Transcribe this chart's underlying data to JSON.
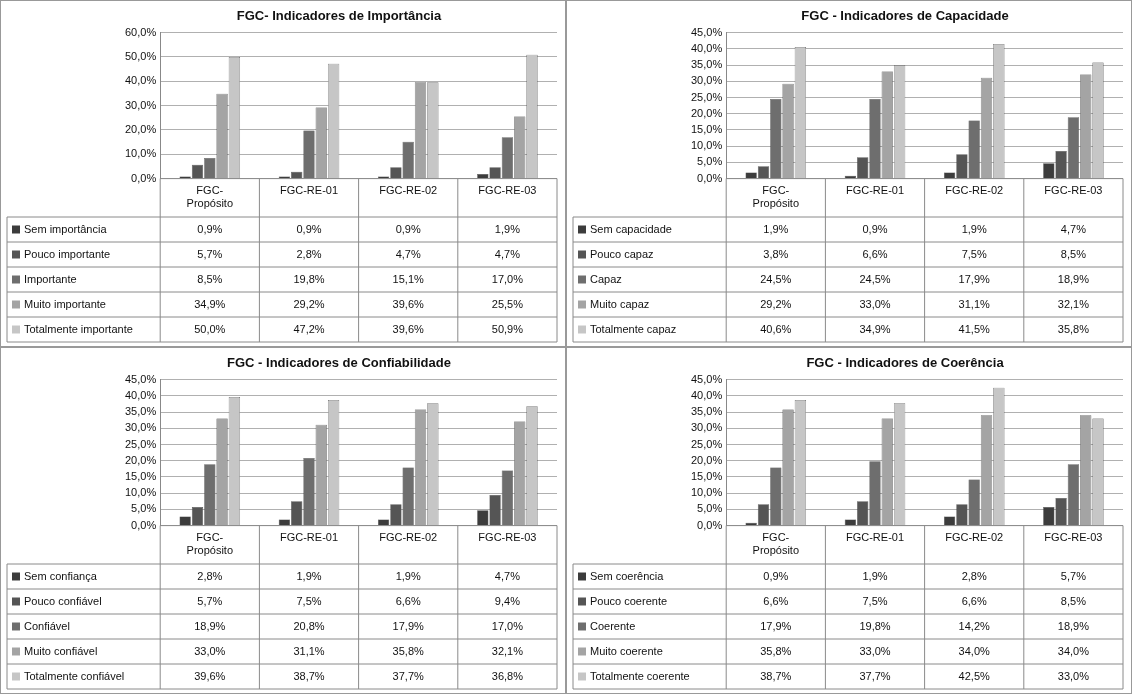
{
  "chart_data": [
    {
      "type": "bar",
      "title": "FGC- Indicadores de Importância",
      "legend": "bottom left",
      "categories": [
        "FGC- Propósito",
        "FGC-RE-01",
        "FGC-RE-02",
        "FGC-RE-03"
      ],
      "ylim": [
        0,
        60
      ],
      "yticks": [
        {
          "value": 0,
          "label": "0,0%"
        },
        {
          "value": 10,
          "label": "10,0%"
        },
        {
          "value": 20,
          "label": "20,0%"
        },
        {
          "value": 30,
          "label": "30,0%"
        },
        {
          "value": 40,
          "label": "40,0%"
        },
        {
          "value": 50,
          "label": "50,0%"
        },
        {
          "value": 60,
          "label": "60,0%"
        }
      ],
      "grid": "y",
      "series": [
        {
          "name": "Sem importância",
          "color": "#3c3c3c",
          "values": [
            0.9,
            0.9,
            0.9,
            1.9
          ],
          "value_labels": [
            "0,9%",
            "0,9%",
            "0,9%",
            "1,9%"
          ]
        },
        {
          "name": "Pouco importante",
          "color": "#555555",
          "values": [
            5.7,
            2.8,
            4.7,
            4.7
          ],
          "value_labels": [
            "5,7%",
            "2,8%",
            "4,7%",
            "4,7%"
          ]
        },
        {
          "name": "Importante",
          "color": "#6e6e6e",
          "values": [
            8.5,
            19.8,
            15.1,
            17.0
          ],
          "value_labels": [
            "8,5%",
            "19,8%",
            "15,1%",
            "17,0%"
          ]
        },
        {
          "name": "Muito importante",
          "color": "#a4a4a4",
          "values": [
            34.9,
            29.2,
            39.6,
            25.5
          ],
          "value_labels": [
            "34,9%",
            "29,2%",
            "39,6%",
            "25,5%"
          ]
        },
        {
          "name": "Totalmente importante",
          "color": "#c6c6c6",
          "values": [
            50.0,
            47.2,
            39.6,
            50.9
          ],
          "value_labels": [
            "50,0%",
            "47,2%",
            "39,6%",
            "50,9%"
          ]
        }
      ]
    },
    {
      "type": "bar",
      "title": "FGC - Indicadores de Capacidade",
      "legend": "bottom left",
      "categories": [
        "FGC- Propósito",
        "FGC-RE-01",
        "FGC-RE-02",
        "FGC-RE-03"
      ],
      "ylim": [
        0,
        45
      ],
      "yticks": [
        {
          "value": 0,
          "label": "0,0%"
        },
        {
          "value": 5,
          "label": "5,0%"
        },
        {
          "value": 10,
          "label": "10,0%"
        },
        {
          "value": 15,
          "label": "15,0%"
        },
        {
          "value": 20,
          "label": "20,0%"
        },
        {
          "value": 25,
          "label": "25,0%"
        },
        {
          "value": 30,
          "label": "30,0%"
        },
        {
          "value": 35,
          "label": "35,0%"
        },
        {
          "value": 40,
          "label": "40,0%"
        },
        {
          "value": 45,
          "label": "45,0%"
        }
      ],
      "grid": "y",
      "series": [
        {
          "name": "Sem capacidade",
          "color": "#3c3c3c",
          "values": [
            1.9,
            0.9,
            1.9,
            4.7
          ],
          "value_labels": [
            "1,9%",
            "0,9%",
            "1,9%",
            "4,7%"
          ]
        },
        {
          "name": "Pouco capaz",
          "color": "#555555",
          "values": [
            3.8,
            6.6,
            7.5,
            8.5
          ],
          "value_labels": [
            "3,8%",
            "6,6%",
            "7,5%",
            "8,5%"
          ]
        },
        {
          "name": "Capaz",
          "color": "#6e6e6e",
          "values": [
            24.5,
            24.5,
            17.9,
            18.9
          ],
          "value_labels": [
            "24,5%",
            "24,5%",
            "17,9%",
            "18,9%"
          ]
        },
        {
          "name": "Muito capaz",
          "color": "#a4a4a4",
          "values": [
            29.2,
            33.0,
            31.1,
            32.1
          ],
          "value_labels": [
            "29,2%",
            "33,0%",
            "31,1%",
            "32,1%"
          ]
        },
        {
          "name": "Totalmente capaz",
          "color": "#c6c6c6",
          "values": [
            40.6,
            34.9,
            41.5,
            35.8
          ],
          "value_labels": [
            "40,6%",
            "34,9%",
            "41,5%",
            "35,8%"
          ]
        }
      ]
    },
    {
      "type": "bar",
      "title": "FGC - Indicadores de Confiabilidade",
      "legend": "bottom left",
      "categories": [
        "FGC- Propósito",
        "FGC-RE-01",
        "FGC-RE-02",
        "FGC-RE-03"
      ],
      "ylim": [
        0,
        45
      ],
      "yticks": [
        {
          "value": 0,
          "label": "0,0%"
        },
        {
          "value": 5,
          "label": "5,0%"
        },
        {
          "value": 10,
          "label": "10,0%"
        },
        {
          "value": 15,
          "label": "15,0%"
        },
        {
          "value": 20,
          "label": "20,0%"
        },
        {
          "value": 25,
          "label": "25,0%"
        },
        {
          "value": 30,
          "label": "30,0%"
        },
        {
          "value": 35,
          "label": "35,0%"
        },
        {
          "value": 40,
          "label": "40,0%"
        },
        {
          "value": 45,
          "label": "45,0%"
        }
      ],
      "grid": "y",
      "series": [
        {
          "name": "Sem confiança",
          "color": "#3c3c3c",
          "values": [
            2.8,
            1.9,
            1.9,
            4.7
          ],
          "value_labels": [
            "2,8%",
            "1,9%",
            "1,9%",
            "4,7%"
          ]
        },
        {
          "name": "Pouco confiável",
          "color": "#555555",
          "values": [
            5.7,
            7.5,
            6.6,
            9.4
          ],
          "value_labels": [
            "5,7%",
            "7,5%",
            "6,6%",
            "9,4%"
          ]
        },
        {
          "name": "Confiável",
          "color": "#6e6e6e",
          "values": [
            18.9,
            20.8,
            17.9,
            17.0
          ],
          "value_labels": [
            "18,9%",
            "20,8%",
            "17,9%",
            "17,0%"
          ]
        },
        {
          "name": "Muito confiável",
          "color": "#a4a4a4",
          "values": [
            33.0,
            31.1,
            35.8,
            32.1
          ],
          "value_labels": [
            "33,0%",
            "31,1%",
            "35,8%",
            "32,1%"
          ]
        },
        {
          "name": "Totalmente confiável",
          "color": "#c6c6c6",
          "values": [
            39.6,
            38.7,
            37.7,
            36.8
          ],
          "value_labels": [
            "39,6%",
            "38,7%",
            "37,7%",
            "36,8%"
          ]
        }
      ]
    },
    {
      "type": "bar",
      "title": "FGC - Indicadores de Coerência",
      "legend": "bottom left",
      "categories": [
        "FGC- Propósito",
        "FGC-RE-01",
        "FGC-RE-02",
        "FGC-RE-03"
      ],
      "ylim": [
        0,
        45
      ],
      "yticks": [
        {
          "value": 0,
          "label": "0,0%"
        },
        {
          "value": 5,
          "label": "5,0%"
        },
        {
          "value": 10,
          "label": "10,0%"
        },
        {
          "value": 15,
          "label": "15,0%"
        },
        {
          "value": 20,
          "label": "20,0%"
        },
        {
          "value": 25,
          "label": "25,0%"
        },
        {
          "value": 30,
          "label": "30,0%"
        },
        {
          "value": 35,
          "label": "35,0%"
        },
        {
          "value": 40,
          "label": "40,0%"
        },
        {
          "value": 45,
          "label": "45,0%"
        }
      ],
      "grid": "y",
      "series": [
        {
          "name": "Sem coerência",
          "color": "#3c3c3c",
          "values": [
            0.9,
            1.9,
            2.8,
            5.7
          ],
          "value_labels": [
            "0,9%",
            "1,9%",
            "2,8%",
            "5,7%"
          ]
        },
        {
          "name": "Pouco coerente",
          "color": "#555555",
          "values": [
            6.6,
            7.5,
            6.6,
            8.5
          ],
          "value_labels": [
            "6,6%",
            "7,5%",
            "6,6%",
            "8,5%"
          ]
        },
        {
          "name": "Coerente",
          "color": "#6e6e6e",
          "values": [
            17.9,
            19.8,
            14.2,
            18.9
          ],
          "value_labels": [
            "17,9%",
            "19,8%",
            "14,2%",
            "18,9%"
          ]
        },
        {
          "name": "Muito coerente",
          "color": "#a4a4a4",
          "values": [
            35.8,
            33.0,
            34.0,
            34.0
          ],
          "value_labels": [
            "35,8%",
            "33,0%",
            "34,0%",
            "34,0%"
          ]
        },
        {
          "name": "Totalmente coerente",
          "color": "#c6c6c6",
          "values": [
            38.7,
            37.7,
            42.5,
            33.0
          ],
          "value_labels": [
            "38,7%",
            "37,7%",
            "42,5%",
            "33,0%"
          ]
        }
      ]
    }
  ]
}
